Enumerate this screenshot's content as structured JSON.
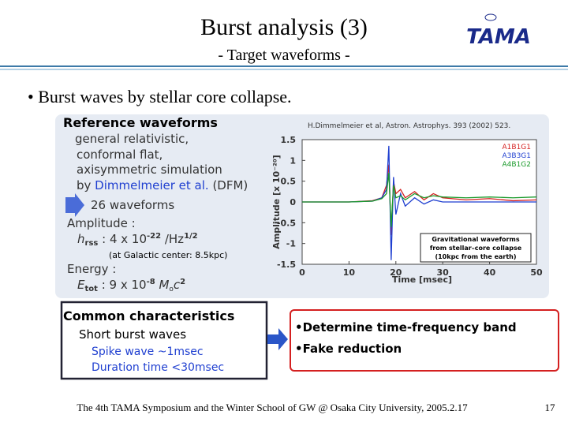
{
  "header": {
    "title": "Burst analysis (3)",
    "subtitle": "- Target waveforms -",
    "logo": "TAMA"
  },
  "bullet": "• Burst waves by stellar core collapse.",
  "reference": {
    "heading": "Reference waveforms",
    "lines": [
      "general relativistic,",
      "conformal flat,",
      "axisymmetric simulation"
    ],
    "by": "by ",
    "author": "Dimmelmeier et al.",
    "method": " (DFM)",
    "count": "26 waveforms",
    "amplitude": {
      "label": "Amplitude :",
      "symbol": "h",
      "sub": "rss",
      "text": " : 4 x 10",
      "exp": "-22",
      "unit": " /Hz",
      "unit_exp": "1/2"
    },
    "distance": "(at Galactic center: 8.5kpc)",
    "energy": {
      "label": "Energy :",
      "symbol": "E",
      "sub": "tot",
      "text": " : 9 x 10",
      "exp": "-8",
      "unit": " M",
      "unit_sub": "o",
      "unit2": "c",
      "unit_exp": "2"
    }
  },
  "chart": {
    "type": "line",
    "citation": "H.Dimmelmeier et al,  Astron. Astrophys. 393 (2002) 523.",
    "xlabel": "Time  [msec]",
    "ylabel": "Amplitude  [x 10⁻²⁰]",
    "annotation": [
      "Gravitational waveforms",
      "from stellar–core collapse",
      "(10kpc from the earth)"
    ],
    "xlim": [
      0,
      50
    ],
    "xticks": [
      0,
      10,
      20,
      30,
      40,
      50
    ],
    "ylim": [
      -1.5,
      1.5
    ],
    "yticks": [
      -1.5,
      -1,
      -0.5,
      0,
      0.5,
      1,
      1.5
    ],
    "x": [
      0,
      5,
      10,
      15,
      17,
      18,
      18.5,
      19,
      19.5,
      20,
      21,
      22,
      24,
      26,
      28,
      30,
      35,
      40,
      45,
      50
    ],
    "series": [
      {
        "name": "A1B1G1",
        "color": "#d42020",
        "values": [
          0,
          0,
          0,
          0.03,
          0.1,
          0.4,
          0.9,
          -0.8,
          0.5,
          0.2,
          0.3,
          0.1,
          0.25,
          0.05,
          0.2,
          0.1,
          0.05,
          0.08,
          0.03,
          0.05
        ]
      },
      {
        "name": "A3B3G1",
        "color": "#1f3fd0",
        "values": [
          0,
          0,
          0,
          0.02,
          0.1,
          0.3,
          1.35,
          -1.4,
          0.6,
          -0.3,
          0.2,
          -0.1,
          0.1,
          -0.05,
          0.05,
          0,
          0,
          0,
          0,
          0
        ]
      },
      {
        "name": "A4B1G2",
        "color": "#1a9a2a",
        "values": [
          0,
          0,
          0,
          0.02,
          0.08,
          0.2,
          0.7,
          -0.6,
          0.4,
          0.1,
          0.15,
          0.05,
          0.2,
          0.1,
          0.15,
          0.12,
          0.1,
          0.12,
          0.1,
          0.12
        ]
      }
    ]
  },
  "common": {
    "heading": "Common characteristics",
    "sub": "Short burst waves",
    "items": [
      "Spike wave ~1msec",
      "Duration time <30msec"
    ]
  },
  "goals": [
    "•Determine time-frequency band",
    "•Fake reduction"
  ],
  "footer": "The 4th TAMA Symposium and the Winter School of GW @ Osaka City University, 2005.2.17",
  "page": "17"
}
